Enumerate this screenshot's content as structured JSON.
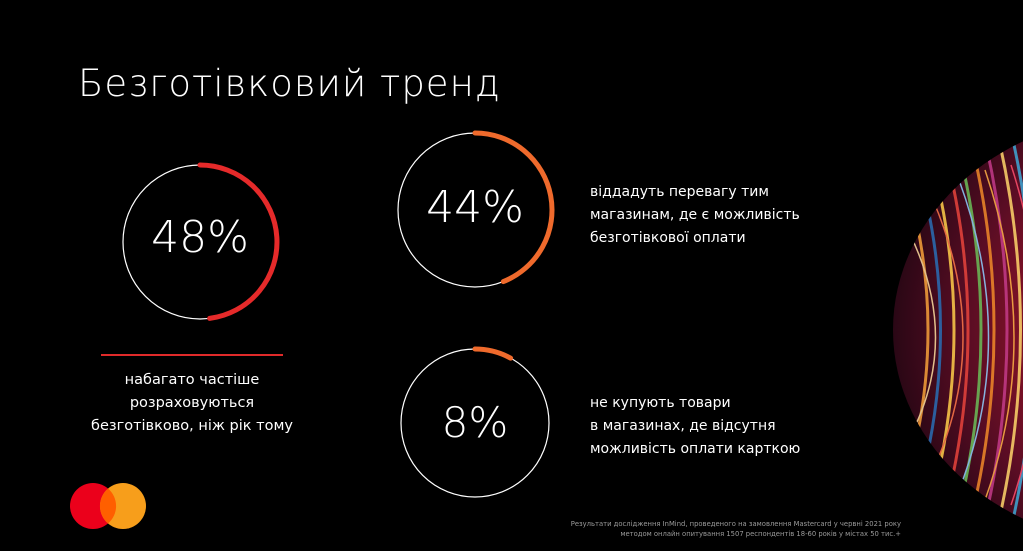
{
  "title": "Безготівковий тренд",
  "stats": [
    {
      "value": "48%",
      "fraction": 0.48,
      "color": "#e52a2a",
      "caption": [
        "набагато частіше",
        "розраховуються",
        "безготівково, ніж рік тому"
      ]
    },
    {
      "value": "44%",
      "fraction": 0.44,
      "color": "#ef6a2c",
      "description": [
        "віддадуть перевагу тим",
        "магазинам, де є можливість",
        "безготівкової оплати"
      ]
    },
    {
      "value": "8%",
      "fraction": 0.08,
      "color": "#ef6a2c",
      "description": [
        "не купують товари",
        "в магазинах, де відсутня",
        "можливість оплати карткою"
      ]
    }
  ],
  "footnote": {
    "line1": "Результати дослідження InMind, проведеного на замовлення Mastercard у червні 2021 року",
    "line2": "методом онлайн опитування 1507 респондентів 18-60 років у містах 50 тис.+"
  },
  "colors": {
    "background": "#000000",
    "logo_red": "#eb001b",
    "logo_orange": "#f79e1b",
    "logo_overlap": "#ff5f00"
  },
  "icons": {
    "logo": "mastercard-logo",
    "decoration": "colorful-sphere"
  }
}
